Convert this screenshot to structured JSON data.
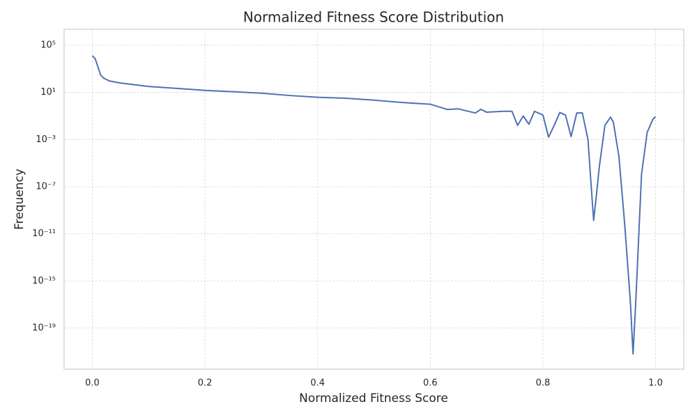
{
  "chart_data": {
    "type": "line",
    "title": "Normalized Fitness Score Distribution",
    "x_label": "Normalized Fitness Score",
    "y_label": "Frequency",
    "x": [
      0,
      0.005,
      0.015,
      0.02,
      0.03,
      0.05,
      0.1,
      0.15,
      0.2,
      0.25,
      0.3,
      0.35,
      0.4,
      0.45,
      0.5,
      0.55,
      0.6,
      0.63,
      0.65,
      0.68,
      0.69,
      0.7,
      0.73,
      0.745,
      0.755,
      0.765,
      0.775,
      0.785,
      0.8,
      0.81,
      0.82,
      0.83,
      0.84,
      0.85,
      0.86,
      0.87,
      0.88,
      0.885,
      0.89,
      0.895,
      0.9,
      0.91,
      0.92,
      0.925,
      0.935,
      0.945,
      0.955,
      0.96,
      0.965,
      0.975,
      0.985,
      0.995,
      1.0
    ],
    "series": [
      {
        "name": "Frequency",
        "color": "#4c72b0",
        "values": [
          12900,
          7600,
          290,
          166,
          95,
          63,
          32,
          22,
          15,
          11.5,
          8.7,
          5.5,
          3.9,
          3.2,
          2.2,
          1.4,
          1.0,
          0.36,
          0.4,
          0.18,
          0.37,
          0.21,
          0.25,
          0.25,
          0.016,
          0.1,
          0.02,
          0.25,
          0.12,
          0.0016,
          0.016,
          0.2,
          0.12,
          0.0018,
          0.18,
          0.18,
          0.001,
          3.2e-07,
          1.4e-10,
          2e-08,
          4.4e-06,
          0.016,
          0.08,
          0.03,
          3.4e-05,
          8e-11,
          2.5e-17,
          6.3e-22,
          2.5e-17,
          1.1e-06,
          0.004,
          0.05,
          0.09
        ]
      }
    ],
    "xlim": [
      -0.05,
      1.05
    ],
    "xticks": [
      {
        "value": 0,
        "label": "0.0"
      },
      0.2,
      0.4,
      0.6,
      0.8,
      {
        "value": 1,
        "label": "1.0"
      }
    ],
    "ylim": [
      3.2e-23,
      2300000.0
    ],
    "log_y": true,
    "yticks": [
      {
        "value": 100000.0,
        "label": "10⁵"
      },
      {
        "value": 10,
        "label": "10¹"
      },
      {
        "value": 0.001,
        "label": "10⁻³"
      },
      {
        "value": 1e-07,
        "label": "10⁻⁷"
      },
      {
        "value": 1e-11,
        "label": "10⁻¹¹"
      },
      {
        "value": 1e-15,
        "label": "10⁻¹⁵"
      },
      {
        "value": 1e-19,
        "label": "10⁻¹⁹"
      }
    ],
    "grid": true
  }
}
